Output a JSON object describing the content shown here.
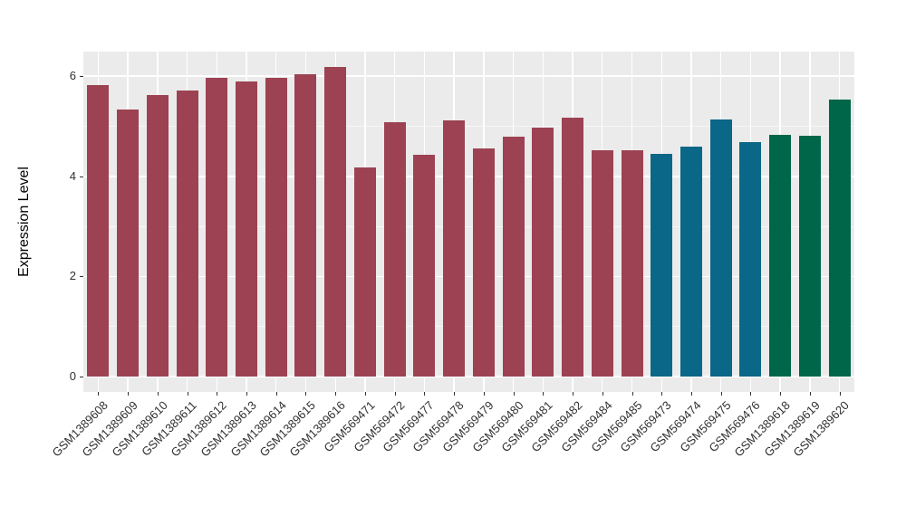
{
  "chart_data": {
    "type": "bar",
    "title": "",
    "xlabel": "",
    "ylabel": "Expression Level",
    "ylim": [
      0,
      6.49
    ],
    "yticks": [
      {
        "value": 0,
        "label": "0"
      },
      {
        "value": 2,
        "label": "2"
      },
      {
        "value": 4,
        "label": "4"
      },
      {
        "value": 6,
        "label": "6"
      }
    ],
    "yticks_minor": [
      1,
      3,
      5
    ],
    "grid": "on",
    "legend_position": "none",
    "categories": [
      "GSM1389608",
      "GSM1389609",
      "GSM1389610",
      "GSM1389611",
      "GSM1389612",
      "GSM1389613",
      "GSM1389614",
      "GSM1389615",
      "GSM1389616",
      "GSM569471",
      "GSM569472",
      "GSM569477",
      "GSM569478",
      "GSM569479",
      "GSM569480",
      "GSM569481",
      "GSM569482",
      "GSM569484",
      "GSM569485",
      "GSM569473",
      "GSM569474",
      "GSM569475",
      "GSM569476",
      "GSM1389618",
      "GSM1389619",
      "GSM1389620"
    ],
    "values": [
      5.82,
      5.33,
      5.63,
      5.72,
      5.96,
      5.89,
      5.96,
      6.04,
      6.18,
      4.17,
      5.08,
      4.43,
      5.12,
      4.56,
      4.79,
      4.97,
      5.18,
      4.52,
      4.52,
      4.45,
      4.59,
      5.13,
      4.69,
      4.82,
      4.81,
      5.53
    ],
    "bar_groups": [
      "maroon",
      "maroon",
      "maroon",
      "maroon",
      "maroon",
      "maroon",
      "maroon",
      "maroon",
      "maroon",
      "maroon",
      "maroon",
      "maroon",
      "maroon",
      "maroon",
      "maroon",
      "maroon",
      "maroon",
      "maroon",
      "maroon",
      "teal",
      "teal",
      "teal",
      "teal",
      "green",
      "green",
      "green"
    ],
    "group_colors": {
      "maroon": "#9C4252",
      "teal": "#0A6787",
      "green": "#006649"
    }
  },
  "style": {
    "panel_background": "#EBEBEB",
    "grid_color": "#FFFFFF",
    "axis_text_color": "#303030",
    "axis_title_color": "#000000",
    "tick_color": "#333333"
  }
}
